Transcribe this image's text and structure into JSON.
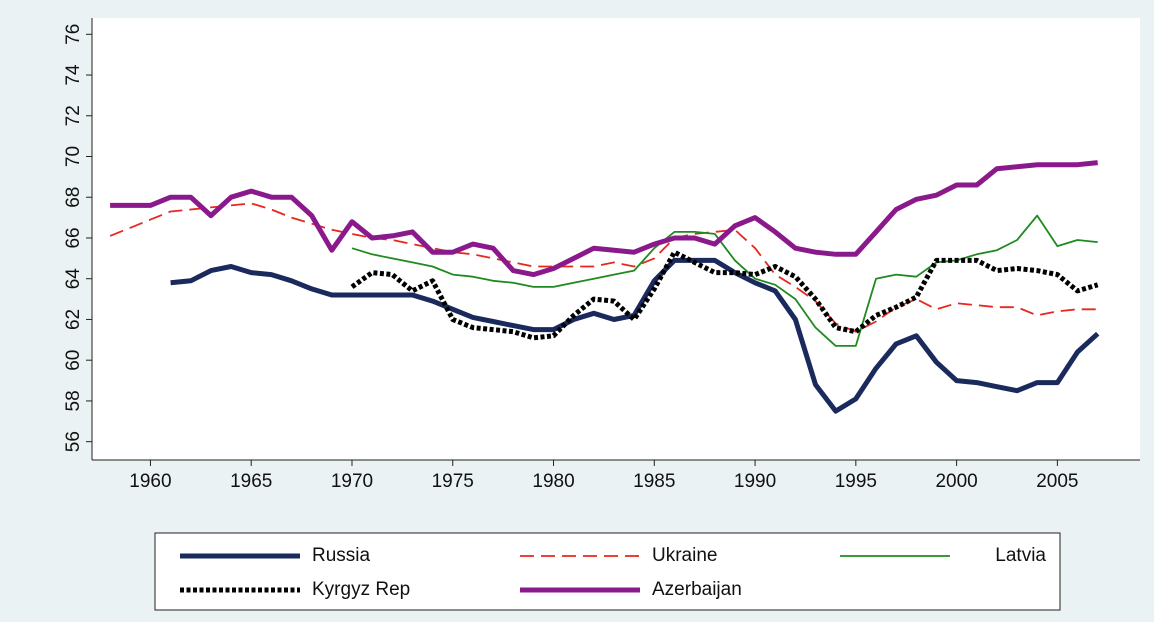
{
  "chart_data": {
    "type": "line",
    "x": [
      1958,
      1959,
      1960,
      1961,
      1962,
      1963,
      1964,
      1965,
      1966,
      1967,
      1968,
      1969,
      1970,
      1971,
      1972,
      1973,
      1974,
      1975,
      1976,
      1977,
      1978,
      1979,
      1980,
      1981,
      1982,
      1983,
      1984,
      1985,
      1986,
      1987,
      1988,
      1989,
      1990,
      1991,
      1992,
      1993,
      1994,
      1995,
      1996,
      1997,
      1998,
      1999,
      2000,
      2001,
      2002,
      2003,
      2004,
      2005,
      2006,
      2007
    ],
    "xlim": [
      1957.1,
      2009.1
    ],
    "xticks": [
      1960,
      1965,
      1970,
      1975,
      1980,
      1985,
      1990,
      1995,
      2000,
      2005
    ],
    "ylim": [
      55.1,
      76.8
    ],
    "yticks": [
      56,
      58,
      60,
      62,
      64,
      66,
      68,
      70,
      72,
      74,
      76
    ],
    "legend": "bottom",
    "series": [
      {
        "name": "Russia",
        "color": "#1b2a5c",
        "line_style": "solid",
        "weight": "thick",
        "values": [
          null,
          null,
          null,
          63.8,
          63.9,
          64.4,
          64.6,
          64.3,
          64.2,
          63.9,
          63.5,
          63.2,
          63.2,
          63.2,
          63.2,
          63.2,
          62.9,
          62.5,
          62.1,
          61.9,
          61.7,
          61.5,
          61.5,
          62.0,
          62.3,
          62.0,
          62.2,
          63.9,
          64.9,
          64.9,
          64.9,
          64.3,
          63.8,
          63.4,
          62.0,
          58.8,
          57.5,
          58.1,
          59.6,
          60.8,
          61.2,
          59.9,
          59.0,
          58.9,
          58.7,
          58.5,
          58.9,
          58.9,
          60.4,
          61.3
        ]
      },
      {
        "name": "Ukraine",
        "color": "#e8271f",
        "line_style": "dashed",
        "weight": "thin",
        "values": [
          66.1,
          66.5,
          66.9,
          67.3,
          67.4,
          67.5,
          67.6,
          67.7,
          67.4,
          67.0,
          66.7,
          66.4,
          66.2,
          66.0,
          65.9,
          65.7,
          65.5,
          65.3,
          65.2,
          65.0,
          64.8,
          64.6,
          64.6,
          64.6,
          64.6,
          64.8,
          64.6,
          65.0,
          66.0,
          66.2,
          66.3,
          66.4,
          65.5,
          64.2,
          63.6,
          62.9,
          61.8,
          61.4,
          61.9,
          62.6,
          63.0,
          62.5,
          62.8,
          62.7,
          62.6,
          62.6,
          62.2,
          62.4,
          62.5,
          62.5
        ]
      },
      {
        "name": "Latvia",
        "color": "#1f8a1f",
        "line_style": "solid",
        "weight": "thin",
        "values": [
          null,
          null,
          null,
          null,
          null,
          null,
          null,
          null,
          null,
          null,
          null,
          null,
          65.5,
          65.2,
          65.0,
          64.8,
          64.6,
          64.2,
          64.1,
          63.9,
          63.8,
          63.6,
          63.6,
          63.8,
          64.0,
          64.2,
          64.4,
          65.5,
          66.3,
          66.3,
          66.2,
          64.9,
          64.0,
          63.7,
          63.0,
          61.6,
          60.7,
          60.7,
          64.0,
          64.2,
          64.1,
          64.8,
          64.9,
          65.2,
          65.4,
          65.9,
          67.1,
          65.6,
          65.9,
          65.8
        ]
      },
      {
        "name": "Kyrgyz Rep",
        "color": "#000000",
        "line_style": "dotted",
        "weight": "thick",
        "values": [
          null,
          null,
          null,
          null,
          null,
          null,
          null,
          null,
          null,
          null,
          null,
          null,
          63.6,
          64.3,
          64.2,
          63.4,
          63.9,
          62.0,
          61.6,
          61.5,
          61.4,
          61.1,
          61.2,
          62.2,
          63.0,
          62.9,
          62.0,
          63.5,
          65.3,
          64.8,
          64.3,
          64.3,
          64.2,
          64.6,
          64.1,
          63.0,
          61.6,
          61.4,
          62.2,
          62.6,
          63.1,
          64.9,
          64.9,
          64.9,
          64.4,
          64.5,
          64.4,
          64.2,
          63.4,
          63.7
        ]
      },
      {
        "name": "Azerbaijan",
        "color": "#8a1a8c",
        "line_style": "solid",
        "weight": "thick",
        "values": [
          67.6,
          67.6,
          67.6,
          68.0,
          68.0,
          67.1,
          68.0,
          68.3,
          68.0,
          68.0,
          67.1,
          65.4,
          66.8,
          66.0,
          66.1,
          66.3,
          65.3,
          65.3,
          65.7,
          65.5,
          64.4,
          64.2,
          64.5,
          65.0,
          65.5,
          65.4,
          65.3,
          65.7,
          66.0,
          66.0,
          65.7,
          66.6,
          67.0,
          66.3,
          65.5,
          65.3,
          65.2,
          65.2,
          66.3,
          67.4,
          67.9,
          68.1,
          68.6,
          68.6,
          69.4,
          69.5,
          69.6,
          69.6,
          69.6,
          69.7
        ]
      }
    ]
  }
}
